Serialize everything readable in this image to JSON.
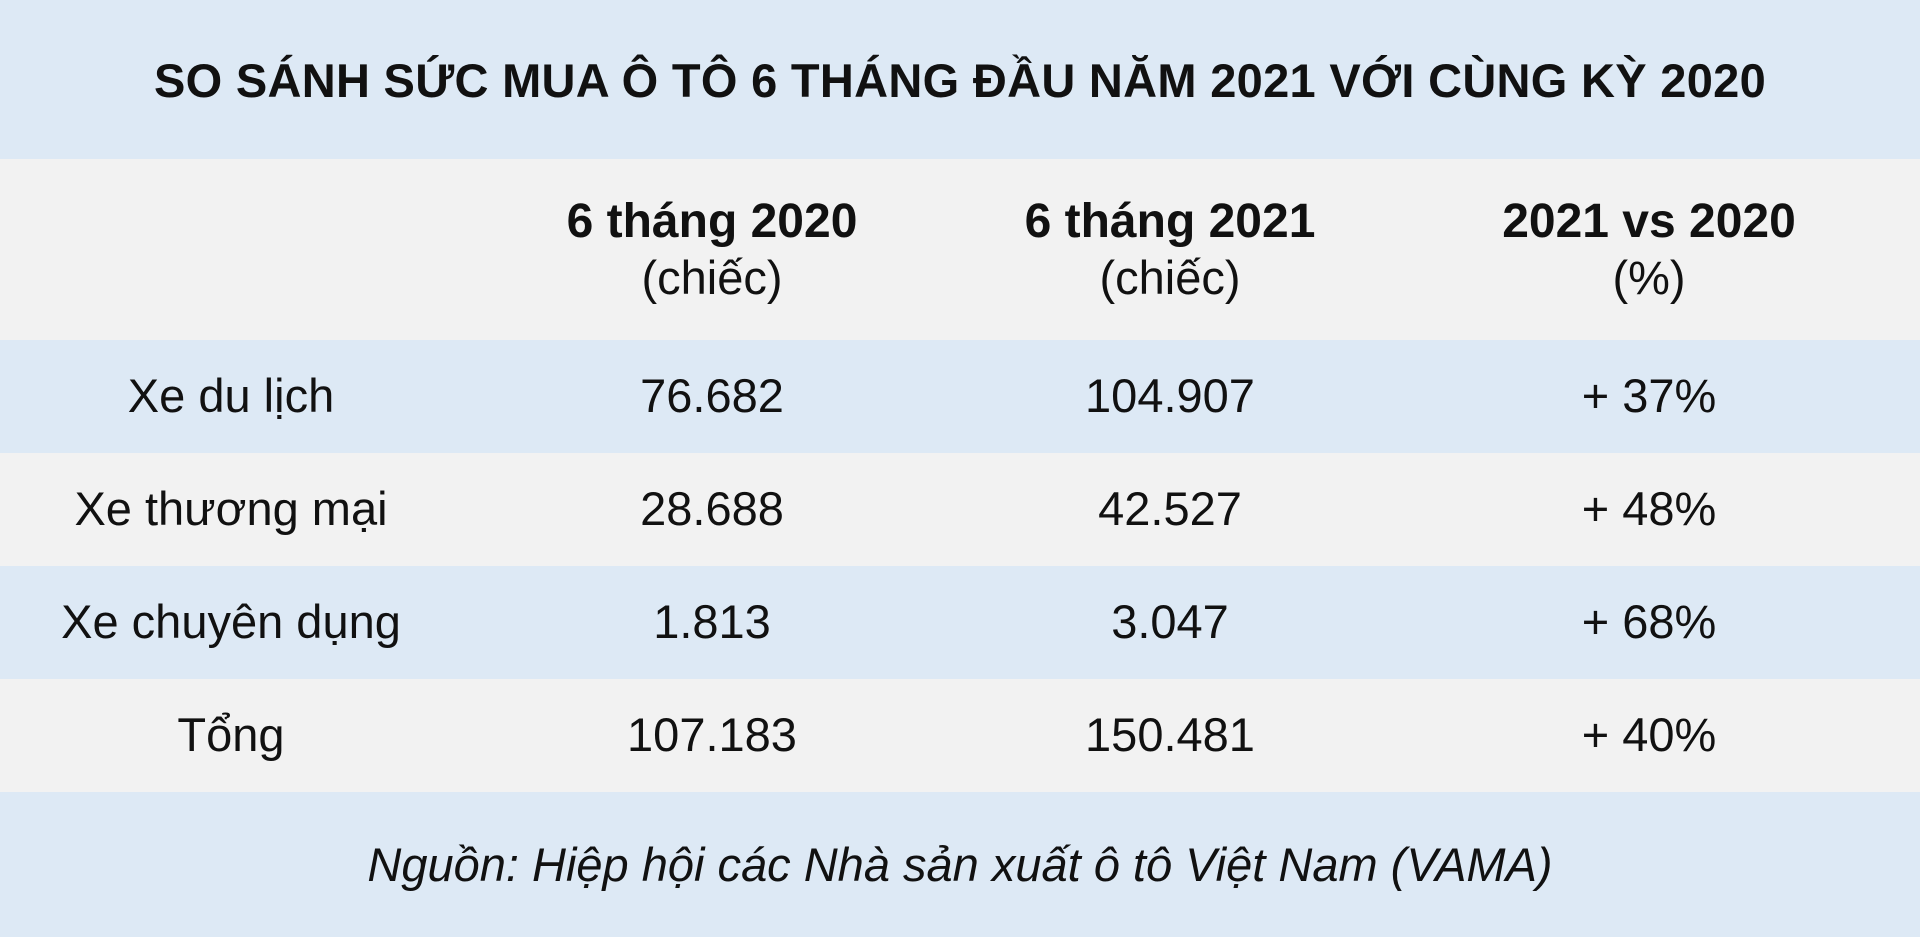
{
  "title": "SO SÁNH SỨC MUA Ô TÔ 6 THÁNG ĐẦU NĂM 2021 VỚI CÙNG KỲ 2020",
  "source": "Nguồn: Hiệp hội các Nhà sản xuất ô tô Việt Nam (VAMA)",
  "colors": {
    "band_blue": "#dde9f5",
    "band_gray": "#f2f2f2",
    "text": "#111111"
  },
  "chart_data": {
    "type": "table",
    "title": "SO SÁNH SỨC MUA Ô TÔ 6 THÁNG ĐẦU NĂM 2021 VỚI CÙNG KỲ 2020",
    "columns": [
      {
        "label": "",
        "unit": ""
      },
      {
        "label": "6 tháng 2020",
        "unit": "(chiếc)"
      },
      {
        "label": "6 tháng 2021",
        "unit": "(chiếc)"
      },
      {
        "label": "2021 vs 2020",
        "unit": "(%)"
      }
    ],
    "rows": [
      {
        "category": "Xe du lịch",
        "v2020": "76.682",
        "v2021": "104.907",
        "change": "+ 37%"
      },
      {
        "category": "Xe thương mại",
        "v2020": "28.688",
        "v2021": "42.527",
        "change": "+ 48%"
      },
      {
        "category": "Xe chuyên dụng",
        "v2020": "1.813",
        "v2021": "3.047",
        "change": "+ 68%"
      },
      {
        "category": "Tổng",
        "v2020": "107.183",
        "v2021": "150.481",
        "change": "+ 40%"
      }
    ]
  }
}
